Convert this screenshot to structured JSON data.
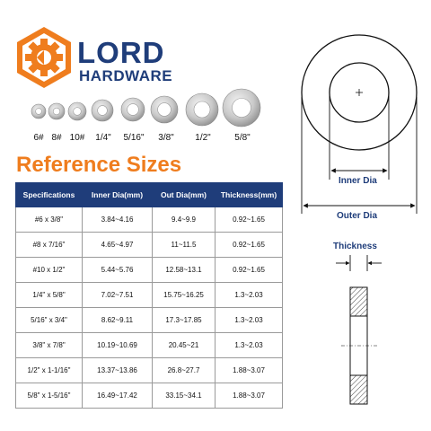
{
  "brand": {
    "name": "LORD",
    "subtitle": "HARDWARE",
    "accent_color": "#ef7d1e",
    "primary_color": "#1f3d7a",
    "logo_icon": "gear-hexagon-icon"
  },
  "washer_labels": [
    "6#",
    "8#",
    "10#",
    "1/4\"",
    "5/16\"",
    "3/8\"",
    "1/2\"",
    "5/8\""
  ],
  "reference_title": "Reference Sizes",
  "table": {
    "headers": [
      "Specifications",
      "Inner Dia(mm)",
      "Out Dia(mm)",
      "Thickness(mm)"
    ],
    "rows": [
      [
        "#6 x 3/8\"",
        "3.84~4.16",
        "9.4~9.9",
        "0.92~1.65"
      ],
      [
        "#8 x 7/16\"",
        "4.65~4.97",
        "11~11.5",
        "0.92~1.65"
      ],
      [
        "#10 x 1/2\"",
        "5.44~5.76",
        "12.58~13.1",
        "0.92~1.65"
      ],
      [
        "1/4\" x 5/8\"",
        "7.02~7.51",
        "15.75~16.25",
        "1.3~2.03"
      ],
      [
        "5/16\" x 3/4\"",
        "8.62~9.11",
        "17.3~17.85",
        "1.3~2.03"
      ],
      [
        "3/8\" x 7/8\"",
        "10.19~10.69",
        "20.45~21",
        "1.3~2.03"
      ],
      [
        "1/2\" x 1-1/16\"",
        "13.37~13.86",
        "26.8~27.7",
        "1.88~3.07"
      ],
      [
        "5/8\" x 1-5/16\"",
        "16.49~17.42",
        "33.15~34.1",
        "1.88~3.07"
      ]
    ]
  },
  "diagram": {
    "inner_label": "Inner Dia",
    "outer_label": "Outer Dia",
    "thickness_label": "Thickness"
  }
}
